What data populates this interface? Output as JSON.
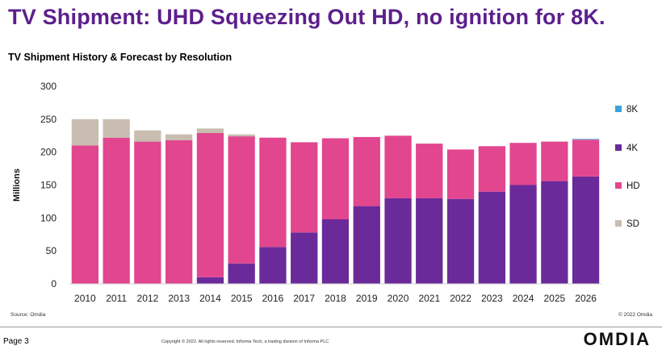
{
  "slide": {
    "title": "TV Shipment: UHD Squeezing Out HD, no ignition for 8K.",
    "source": "Source: Omdia",
    "chart_copyright": "© 2022 Omdia",
    "page": "Page 3",
    "footer_copyright": "Copyright © 2022. All rights reserved. Informa Tech, a trading division of Informa PLC",
    "logo": "OMDIA"
  },
  "colors": {
    "title": "#5c1f8c",
    "8K": "#3aa3d6",
    "4K": "#6a2a9a",
    "HD": "#e2468f",
    "SD": "#c8bdb0"
  },
  "chart_data": {
    "type": "bar",
    "stacked": true,
    "title": "TV Shipment History & Forecast by Resolution",
    "xlabel": "",
    "ylabel": "Millions",
    "ylim": [
      0,
      300
    ],
    "yticks": [
      0,
      50,
      100,
      150,
      200,
      250,
      300
    ],
    "grid": false,
    "legend_position": "right",
    "categories": [
      "2010",
      "2011",
      "2012",
      "2013",
      "2014",
      "2015",
      "2016",
      "2017",
      "2018",
      "2019",
      "2020",
      "2021",
      "2022",
      "2023",
      "2024",
      "2025",
      "2026"
    ],
    "series": [
      {
        "name": "4K",
        "values": [
          0,
          0,
          0,
          0,
          10,
          31,
          56,
          78,
          98,
          118,
          130,
          130,
          129,
          140,
          150,
          156,
          163
        ]
      },
      {
        "name": "HD",
        "values": [
          210,
          222,
          216,
          218,
          219,
          193,
          166,
          137,
          123,
          105,
          95,
          83,
          75,
          69,
          64,
          60,
          56
        ]
      },
      {
        "name": "SD",
        "values": [
          40,
          28,
          17,
          9,
          7,
          3,
          0,
          0,
          0,
          0,
          0,
          0,
          0,
          0,
          0,
          0,
          0
        ]
      },
      {
        "name": "8K",
        "values": [
          0,
          0,
          0,
          0,
          0,
          0,
          0,
          0,
          0,
          0,
          0,
          0,
          0,
          0,
          0,
          0,
          1
        ]
      }
    ],
    "legend": [
      "8K",
      "4K",
      "HD",
      "SD"
    ]
  }
}
